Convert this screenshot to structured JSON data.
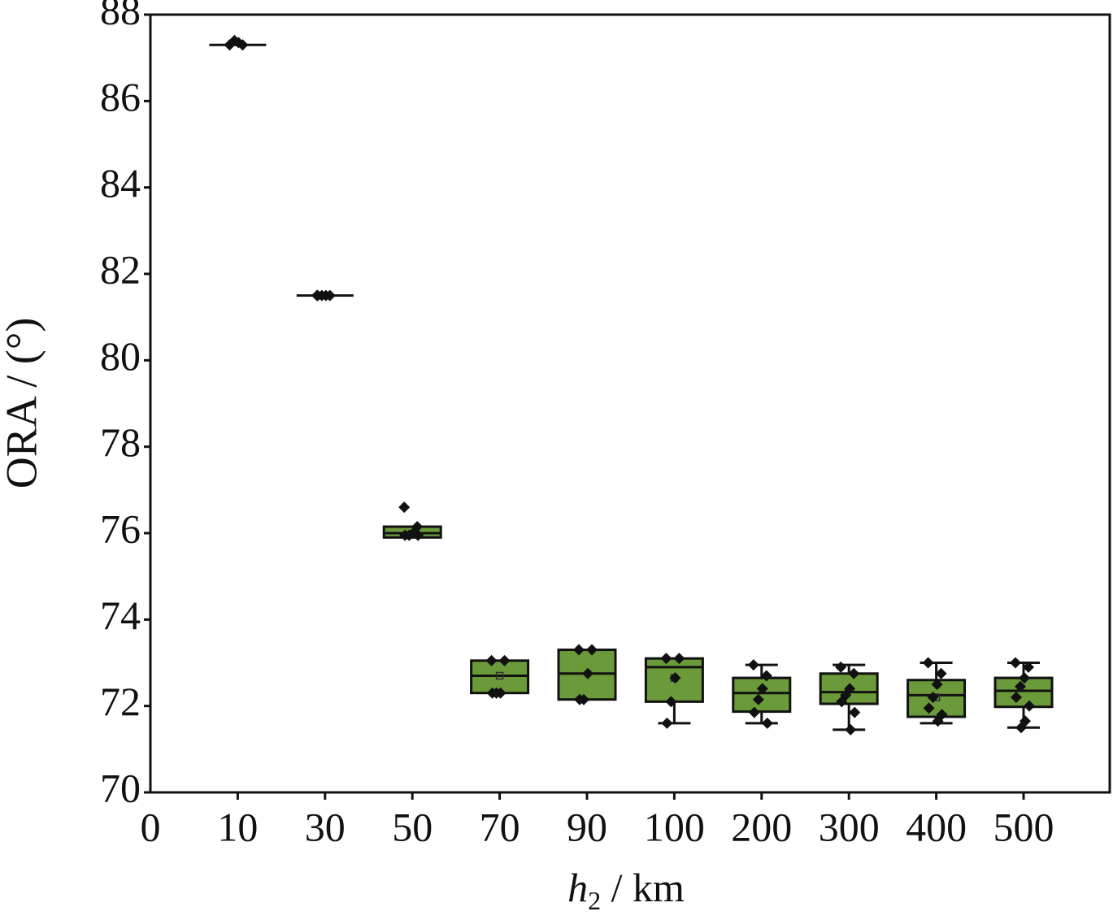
{
  "chart_data": {
    "type": "box",
    "xlabel": [
      "h",
      "2",
      " / km"
    ],
    "ylabel": "ORA / (°)",
    "categories": [
      "0",
      "10",
      "30",
      "50",
      "70",
      "90",
      "100",
      "200",
      "300",
      "400",
      "500"
    ],
    "color": "#6b9a3a",
    "ylim": [
      70,
      88
    ],
    "yticks": [
      70,
      72,
      74,
      76,
      78,
      80,
      82,
      84,
      86,
      88
    ],
    "boxes": [
      null,
      {
        "whislo": 87.3,
        "q1": 87.3,
        "med": 87.3,
        "q3": 87.3,
        "whishi": 87.3,
        "points": [
          87.3,
          87.3,
          87.35,
          87.4
        ]
      },
      {
        "whislo": 81.5,
        "q1": 81.5,
        "med": 81.5,
        "q3": 81.5,
        "whishi": 81.5,
        "points": [
          81.5,
          81.5,
          81.5,
          81.5,
          81.5
        ]
      },
      {
        "whislo": 75.9,
        "q1": 75.9,
        "med": 76.0,
        "q3": 76.15,
        "whishi": 76.15,
        "points": [
          76.6,
          76.15,
          76.0,
          75.95,
          75.95,
          75.95
        ]
      },
      {
        "whislo": 72.3,
        "q1": 72.3,
        "med": 72.7,
        "q3": 73.05,
        "whishi": 73.05,
        "mean": 72.7,
        "points": [
          73.05,
          73.05,
          72.3,
          72.3,
          72.3
        ]
      },
      {
        "whislo": 72.15,
        "q1": 72.15,
        "med": 72.75,
        "q3": 73.3,
        "whishi": 73.3,
        "points": [
          73.3,
          73.3,
          72.75,
          72.15,
          72.15
        ]
      },
      {
        "whislo": 71.6,
        "q1": 72.1,
        "med": 72.9,
        "q3": 73.1,
        "whishi": 73.1,
        "mean": 72.65,
        "points": [
          73.1,
          73.1,
          72.65,
          72.1,
          71.6
        ]
      },
      {
        "whislo": 71.6,
        "q1": 71.87,
        "med": 72.3,
        "q3": 72.65,
        "whishi": 72.95,
        "points": [
          72.95,
          72.7,
          72.4,
          72.15,
          71.85,
          71.6
        ]
      },
      {
        "whislo": 71.45,
        "q1": 72.05,
        "med": 72.32,
        "q3": 72.75,
        "whishi": 72.95,
        "points": [
          72.9,
          72.75,
          72.4,
          72.25,
          72.1,
          71.85,
          71.45
        ]
      },
      {
        "whislo": 71.6,
        "q1": 71.75,
        "med": 72.25,
        "q3": 72.6,
        "whishi": 73.0,
        "mean": 72.2,
        "points": [
          73.0,
          72.75,
          72.5,
          72.2,
          71.95,
          71.8,
          71.65
        ]
      },
      {
        "whislo": 71.5,
        "q1": 71.98,
        "med": 72.35,
        "q3": 72.65,
        "whishi": 73.0,
        "points": [
          73.0,
          72.9,
          72.65,
          72.45,
          72.2,
          72.0,
          71.65,
          71.5
        ]
      }
    ]
  }
}
